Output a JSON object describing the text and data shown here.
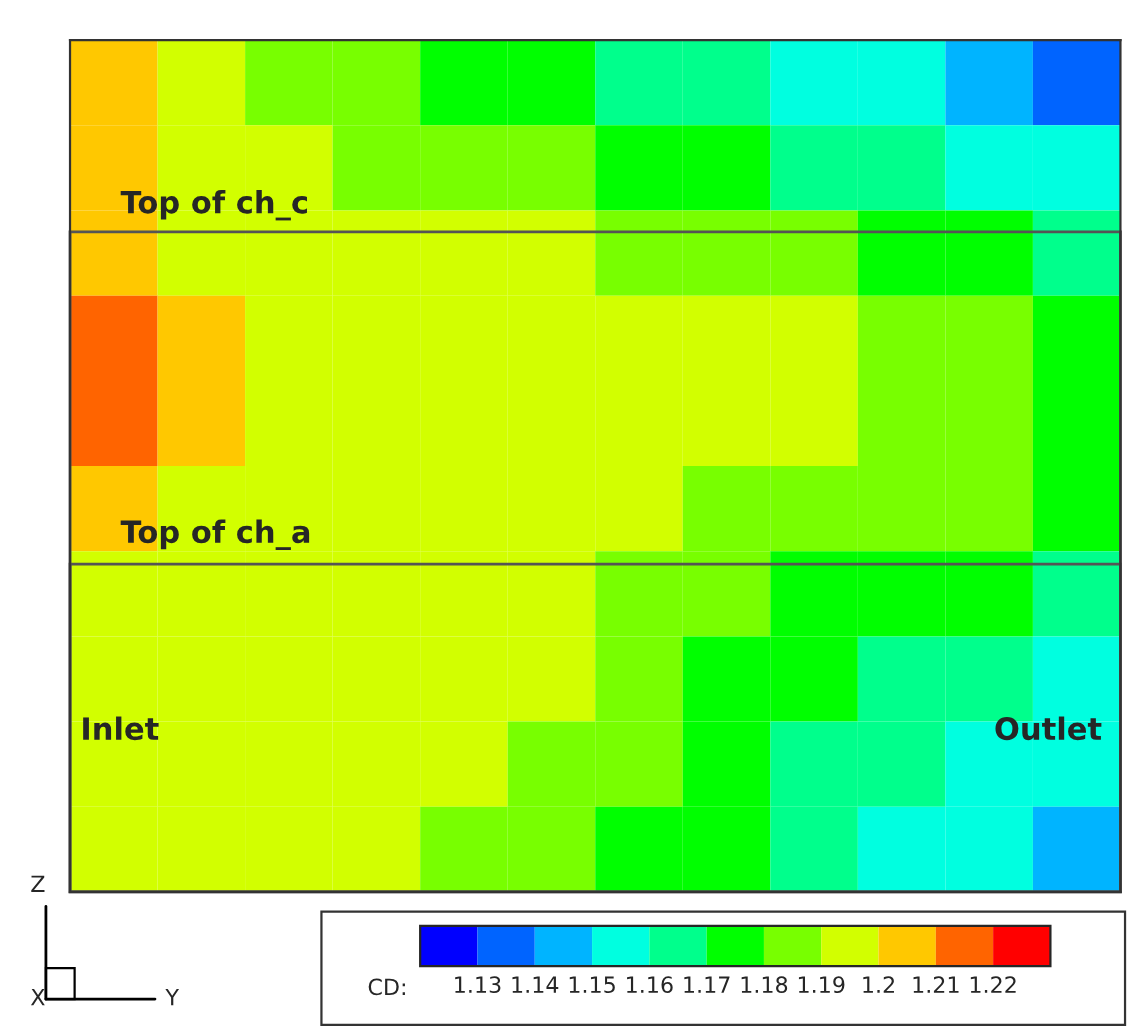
{
  "chart_data": {
    "type": "heatmap",
    "categories": [
      null,
      null,
      null,
      null,
      null,
      null,
      null,
      null,
      null,
      null,
      null,
      null
    ],
    "y_categories": [
      null,
      null,
      null,
      null,
      null,
      null,
      null,
      null,
      null,
      null
    ],
    "cells": [
      [
        1.205,
        1.195,
        1.185,
        1.185,
        1.175,
        1.175,
        1.165,
        1.165,
        1.155,
        1.155,
        1.145,
        1.135
      ],
      [
        1.205,
        1.195,
        1.195,
        1.185,
        1.185,
        1.185,
        1.175,
        1.175,
        1.165,
        1.165,
        1.155,
        1.155
      ],
      [
        1.205,
        1.195,
        1.195,
        1.195,
        1.195,
        1.195,
        1.185,
        1.185,
        1.185,
        1.175,
        1.175,
        1.165
      ],
      [
        1.215,
        1.205,
        1.195,
        1.195,
        1.195,
        1.195,
        1.195,
        1.195,
        1.195,
        1.185,
        1.185,
        1.175
      ],
      [
        1.215,
        1.205,
        1.195,
        1.195,
        1.195,
        1.195,
        1.195,
        1.195,
        1.195,
        1.185,
        1.185,
        1.175
      ],
      [
        1.205,
        1.195,
        1.195,
        1.195,
        1.195,
        1.195,
        1.195,
        1.185,
        1.185,
        1.185,
        1.185,
        1.175
      ],
      [
        1.195,
        1.195,
        1.195,
        1.195,
        1.195,
        1.195,
        1.185,
        1.185,
        1.175,
        1.175,
        1.175,
        1.165
      ],
      [
        1.195,
        1.195,
        1.195,
        1.195,
        1.195,
        1.195,
        1.185,
        1.175,
        1.175,
        1.165,
        1.165,
        1.155
      ],
      [
        1.195,
        1.195,
        1.195,
        1.195,
        1.195,
        1.185,
        1.185,
        1.175,
        1.165,
        1.165,
        1.155,
        1.155
      ],
      [
        1.195,
        1.195,
        1.195,
        1.195,
        1.185,
        1.185,
        1.175,
        1.175,
        1.165,
        1.155,
        1.155,
        1.145
      ]
    ],
    "clim": [
      1.12,
      1.23
    ],
    "cticks": [
      1.13,
      1.14,
      1.15,
      1.16,
      1.17,
      1.18,
      1.19,
      {
        "value": 1.2,
        "label": "1.2"
      },
      1.21,
      1.22
    ],
    "colors": [
      "#0000ff",
      "#0064ff",
      "#00b4ff",
      "#00ffe0",
      "#00ff8c",
      "#00ff00",
      "#78ff00",
      "#d2ff00",
      "#ffc800",
      "#ff6400",
      "#ff0000"
    ],
    "clabel": "CD:",
    "annotations": [
      "Inlet",
      "Outlet",
      "Z",
      "X",
      "Y",
      "Top of ch_c",
      "Top of ch_a"
    ]
  }
}
